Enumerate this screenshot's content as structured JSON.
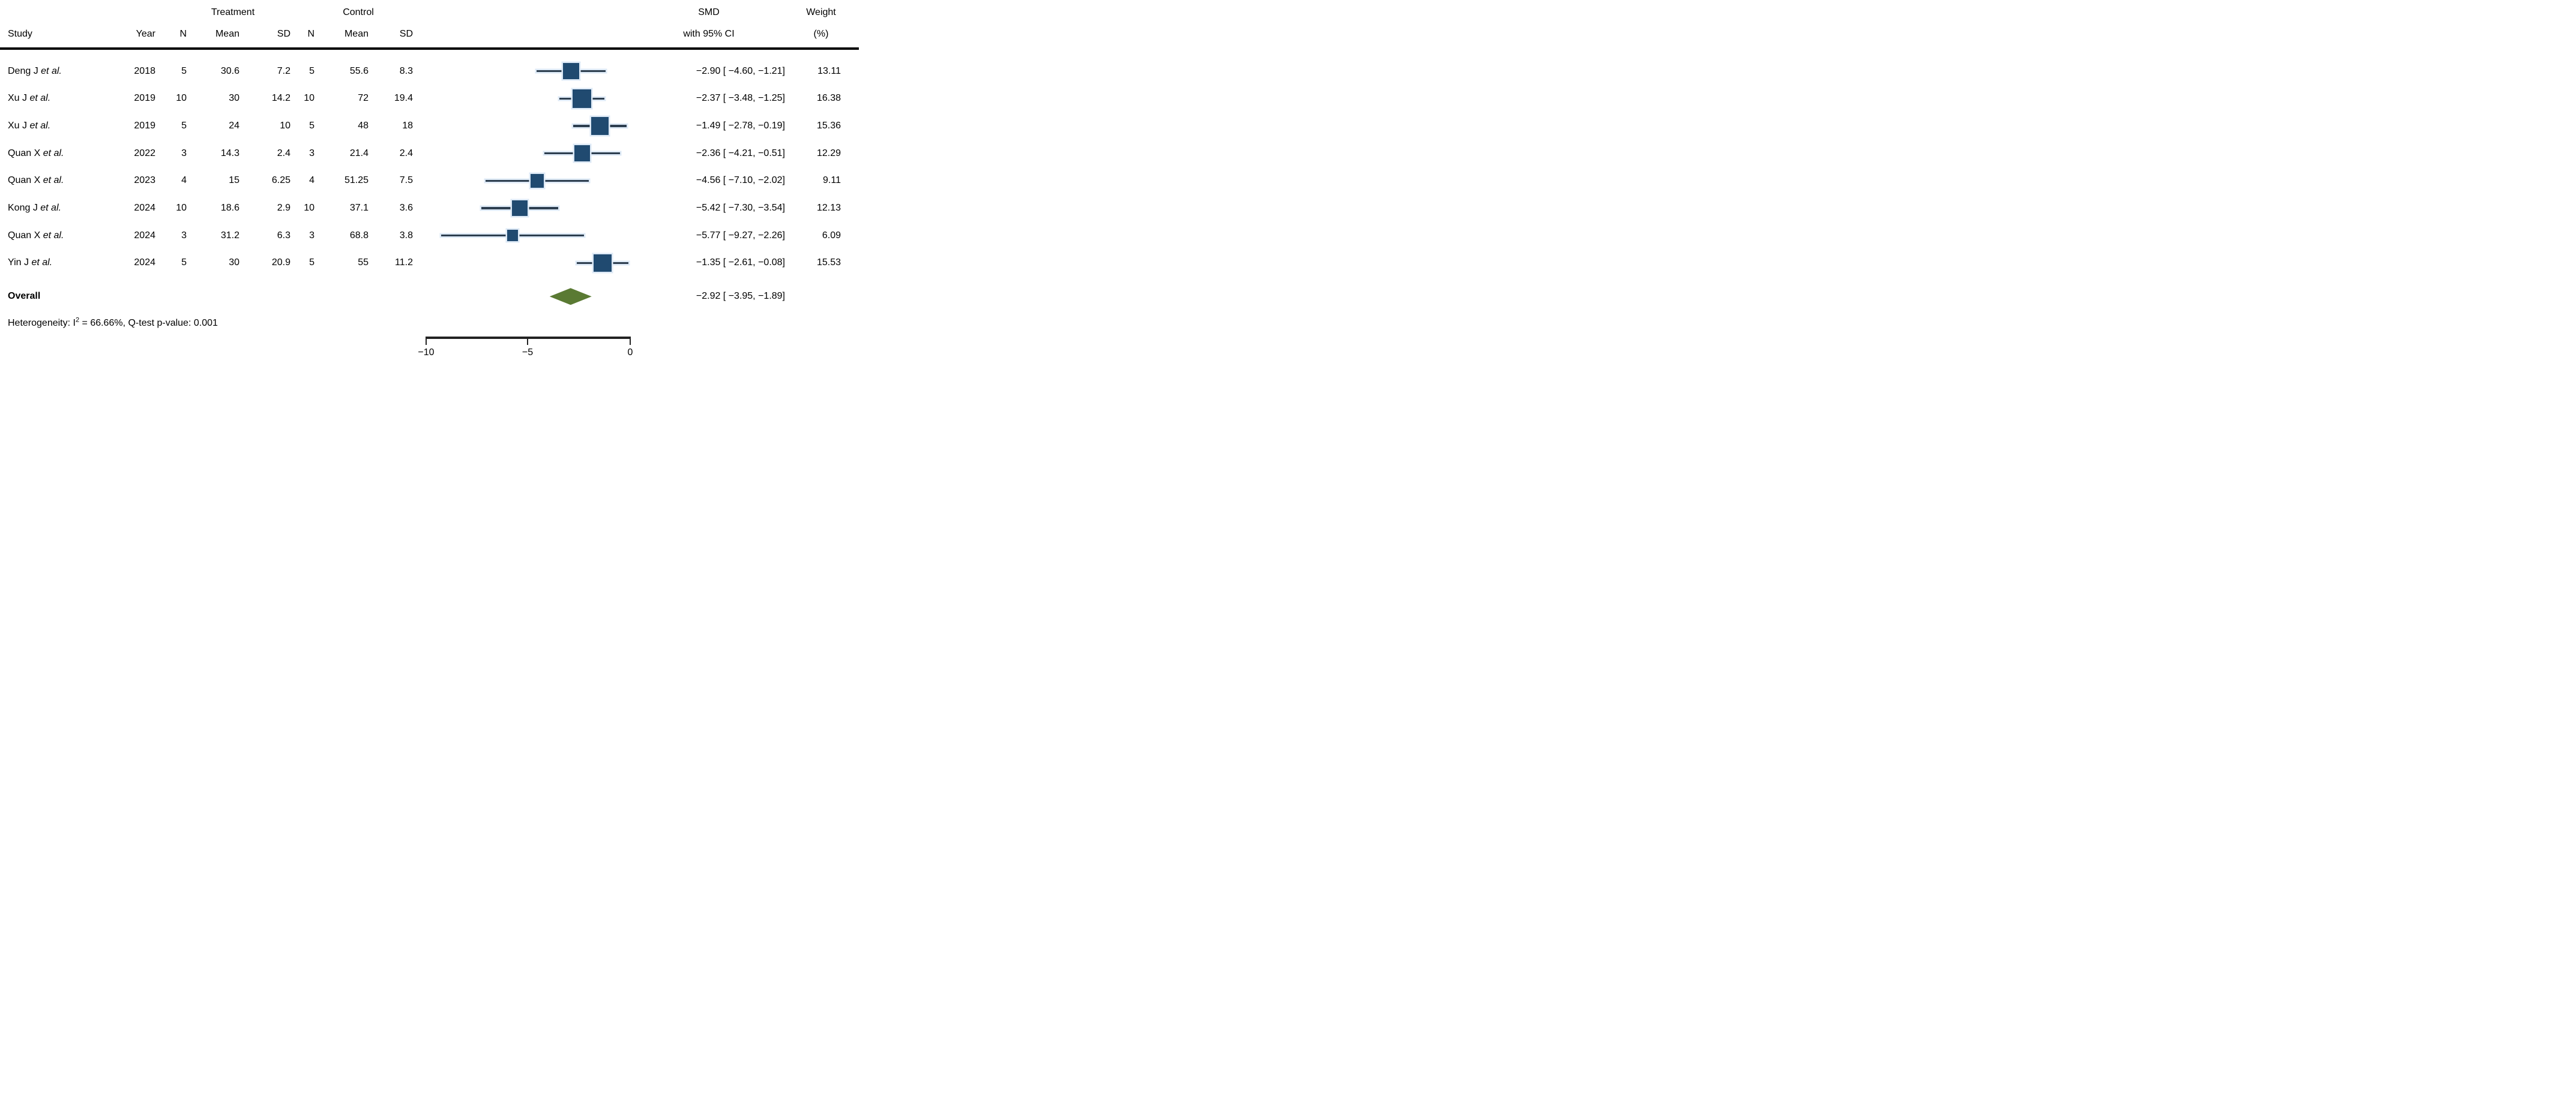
{
  "header": {
    "treatment": "Treatment",
    "control": "Control",
    "study": "Study",
    "year": "Year",
    "n": "N",
    "mean": "Mean",
    "sd": "SD",
    "smd_line1": "SMD",
    "smd_line2": "with 95% CI",
    "weight_line1": "Weight",
    "weight_line2": "(%)"
  },
  "rows": [
    {
      "study": "Deng J",
      "etal": "et al.",
      "year": "2018",
      "n_t": "5",
      "mean_t": "30.6",
      "sd_t": "7.2",
      "n_c": "5",
      "mean_c": "55.6",
      "sd_c": "8.3",
      "smd_label": "−2.90 [ −4.60, −1.21]",
      "weight": "13.11"
    },
    {
      "study": "Xu J",
      "etal": "et al.",
      "year": "2019",
      "n_t": "10",
      "mean_t": "30",
      "sd_t": "14.2",
      "n_c": "10",
      "mean_c": "72",
      "sd_c": "19.4",
      "smd_label": "−2.37 [ −3.48, −1.25]",
      "weight": "16.38"
    },
    {
      "study": "Xu J",
      "etal": "et al.",
      "year": "2019",
      "n_t": "5",
      "mean_t": "24",
      "sd_t": "10",
      "n_c": "5",
      "mean_c": "48",
      "sd_c": "18",
      "smd_label": "−1.49 [ −2.78, −0.19]",
      "weight": "15.36"
    },
    {
      "study": "Quan X",
      "etal": "et al.",
      "year": "2022",
      "n_t": "3",
      "mean_t": "14.3",
      "sd_t": "2.4",
      "n_c": "3",
      "mean_c": "21.4",
      "sd_c": "2.4",
      "smd_label": "−2.36 [ −4.21, −0.51]",
      "weight": "12.29"
    },
    {
      "study": "Quan X",
      "etal": "et al.",
      "year": "2023",
      "n_t": "4",
      "mean_t": "15",
      "sd_t": "6.25",
      "n_c": "4",
      "mean_c": "51.25",
      "sd_c": "7.5",
      "smd_label": "−4.56 [ −7.10, −2.02]",
      "weight": "9.11"
    },
    {
      "study": "Kong J",
      "etal": "et al.",
      "year": "2024",
      "n_t": "10",
      "mean_t": "18.6",
      "sd_t": "2.9",
      "n_c": "10",
      "mean_c": "37.1",
      "sd_c": "3.6",
      "smd_label": "−5.42 [ −7.30, −3.54]",
      "weight": "12.13"
    },
    {
      "study": "Quan X",
      "etal": "et al.",
      "year": "2024",
      "n_t": "3",
      "mean_t": "31.2",
      "sd_t": "6.3",
      "n_c": "3",
      "mean_c": "68.8",
      "sd_c": "3.8",
      "smd_label": "−5.77 [ −9.27, −2.26]",
      "weight": "6.09"
    },
    {
      "study": "Yin J",
      "etal": "et al.",
      "year": "2024",
      "n_t": "5",
      "mean_t": "30",
      "sd_t": "20.9",
      "n_c": "5",
      "mean_c": "55",
      "sd_c": "11.2",
      "smd_label": "−1.35 [ −2.61, −0.08]",
      "weight": "15.53"
    }
  ],
  "overall": {
    "label": "Overall",
    "smd_label": "−2.92 [ −3.95, −1.89]"
  },
  "heterogeneity": {
    "prefix": "Heterogeneity:  I",
    "sup": "2",
    "rest": " = 66.66%, Q-test p-value: 0.001"
  },
  "axis": {
    "ticks": [
      "−10",
      "−5",
      "0"
    ]
  },
  "colors": {
    "square": "#204a70",
    "halo": "#dde9f6",
    "ci_line": "#2d3e4f",
    "diamond": "#5a7a33",
    "text": "#000000",
    "rule": "#000000"
  },
  "chart_data": {
    "type": "forest",
    "effect_measure": "SMD",
    "xlabel": "",
    "x_ticks": [
      -10,
      -5,
      0
    ],
    "xlim": [
      -10,
      0
    ],
    "studies": [
      {
        "label": "Deng J et al.",
        "year": 2018,
        "n_t": 5,
        "mean_t": 30.6,
        "sd_t": 7.2,
        "n_c": 5,
        "mean_c": 55.6,
        "sd_c": 8.3,
        "smd": -2.9,
        "ci": [
          -4.6,
          -1.21
        ],
        "weight": 13.11
      },
      {
        "label": "Xu J et al.",
        "year": 2019,
        "n_t": 10,
        "mean_t": 30,
        "sd_t": 14.2,
        "n_c": 10,
        "mean_c": 72,
        "sd_c": 19.4,
        "smd": -2.37,
        "ci": [
          -3.48,
          -1.25
        ],
        "weight": 16.38
      },
      {
        "label": "Xu J et al.",
        "year": 2019,
        "n_t": 5,
        "mean_t": 24,
        "sd_t": 10,
        "n_c": 5,
        "mean_c": 48,
        "sd_c": 18,
        "smd": -1.49,
        "ci": [
          -2.78,
          -0.19
        ],
        "weight": 15.36
      },
      {
        "label": "Quan X et al.",
        "year": 2022,
        "n_t": 3,
        "mean_t": 14.3,
        "sd_t": 2.4,
        "n_c": 3,
        "mean_c": 21.4,
        "sd_c": 2.4,
        "smd": -2.36,
        "ci": [
          -4.21,
          -0.51
        ],
        "weight": 12.29
      },
      {
        "label": "Quan X et al.",
        "year": 2023,
        "n_t": 4,
        "mean_t": 15,
        "sd_t": 6.25,
        "n_c": 4,
        "mean_c": 51.25,
        "sd_c": 7.5,
        "smd": -4.56,
        "ci": [
          -7.1,
          -2.02
        ],
        "weight": 9.11
      },
      {
        "label": "Kong J et al.",
        "year": 2024,
        "n_t": 10,
        "mean_t": 18.6,
        "sd_t": 2.9,
        "n_c": 10,
        "mean_c": 37.1,
        "sd_c": 3.6,
        "smd": -5.42,
        "ci": [
          -7.3,
          -3.54
        ],
        "weight": 12.13
      },
      {
        "label": "Quan X et al.",
        "year": 2024,
        "n_t": 3,
        "mean_t": 31.2,
        "sd_t": 6.3,
        "n_c": 3,
        "mean_c": 68.8,
        "sd_c": 3.8,
        "smd": -5.77,
        "ci": [
          -9.27,
          -2.26
        ],
        "weight": 6.09
      },
      {
        "label": "Yin J et al.",
        "year": 2024,
        "n_t": 5,
        "mean_t": 30,
        "sd_t": 20.9,
        "n_c": 5,
        "mean_c": 55,
        "sd_c": 11.2,
        "smd": -1.35,
        "ci": [
          -2.61,
          -0.08
        ],
        "weight": 15.53
      }
    ],
    "overall": {
      "smd": -2.92,
      "ci": [
        -3.95,
        -1.89
      ]
    },
    "i_squared_pct": 66.66,
    "q_test_p": 0.001
  }
}
